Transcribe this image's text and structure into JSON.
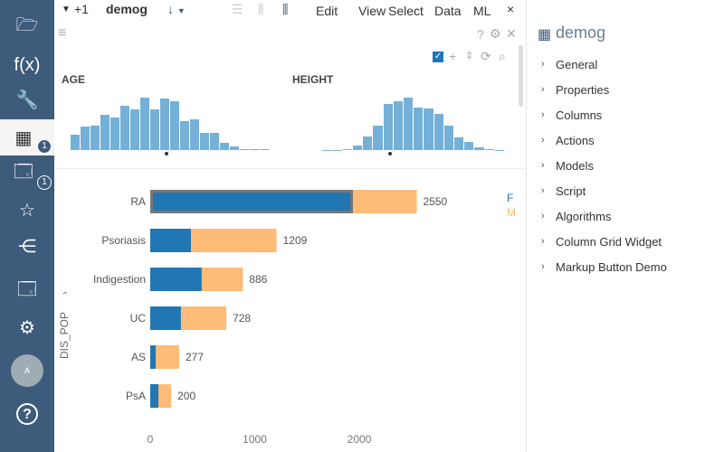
{
  "sidebar": {
    "items": [
      {
        "icon": "folder-open-icon"
      },
      {
        "icon": "function-icon",
        "label": "f(x)"
      },
      {
        "icon": "wrench-icon"
      },
      {
        "icon": "table-icon",
        "badge": "1",
        "active": true
      },
      {
        "icon": "window-icon",
        "badge": "1"
      },
      {
        "icon": "star-icon"
      },
      {
        "icon": "share-icon"
      },
      {
        "icon": "browser-icon"
      },
      {
        "icon": "settings-icon"
      },
      {
        "icon": "avatar",
        "label": "A"
      },
      {
        "icon": "help-icon",
        "label": "?"
      }
    ]
  },
  "toolbar": {
    "plus": "+1",
    "title": "demog",
    "menus": [
      "Edit",
      "View",
      "Select",
      "Data",
      "ML"
    ],
    "close": "×"
  },
  "viewer": {
    "help": "?",
    "histograms": [
      {
        "title": "AGE",
        "values": [
          50,
          77,
          80,
          116,
          107,
          147,
          135,
          173,
          134,
          170,
          161,
          95,
          101,
          58,
          57,
          24,
          11,
          3,
          2,
          2
        ]
      },
      {
        "title": "HEIGHT",
        "values": [
          0,
          0,
          1,
          1,
          4,
          16,
          44,
          82,
          153,
          161,
          173,
          139,
          136,
          119,
          82,
          41,
          26,
          10,
          2,
          1
        ]
      }
    ],
    "histogram_color": "#75b0d9"
  },
  "chart_data": {
    "type": "bar",
    "orientation": "horizontal",
    "stacked": true,
    "ylabel": "DIS_POP",
    "categories": [
      "RA",
      "Psoriasis",
      "Indigestion",
      "UC",
      "AS",
      "PsA"
    ],
    "totals": [
      "2550",
      "1209",
      "886",
      "728",
      "277",
      "200"
    ],
    "series": [
      {
        "name": "F",
        "color": "#2177b4",
        "values": [
          1940,
          390,
          493,
          294,
          52,
          78
        ]
      },
      {
        "name": "M",
        "color": "#ffbb78",
        "values": [
          610,
          819,
          393,
          434,
          225,
          122
        ]
      }
    ],
    "xticks": [
      "0",
      "1000",
      "2000"
    ],
    "xlim": [
      0,
      2550
    ],
    "legend": "top-right"
  },
  "right": {
    "title": "demog",
    "items": [
      "General",
      "Properties",
      "Columns",
      "Actions",
      "Models",
      "Script",
      "Algorithms",
      "Column Grid Widget",
      "Markup Button Demo"
    ]
  }
}
